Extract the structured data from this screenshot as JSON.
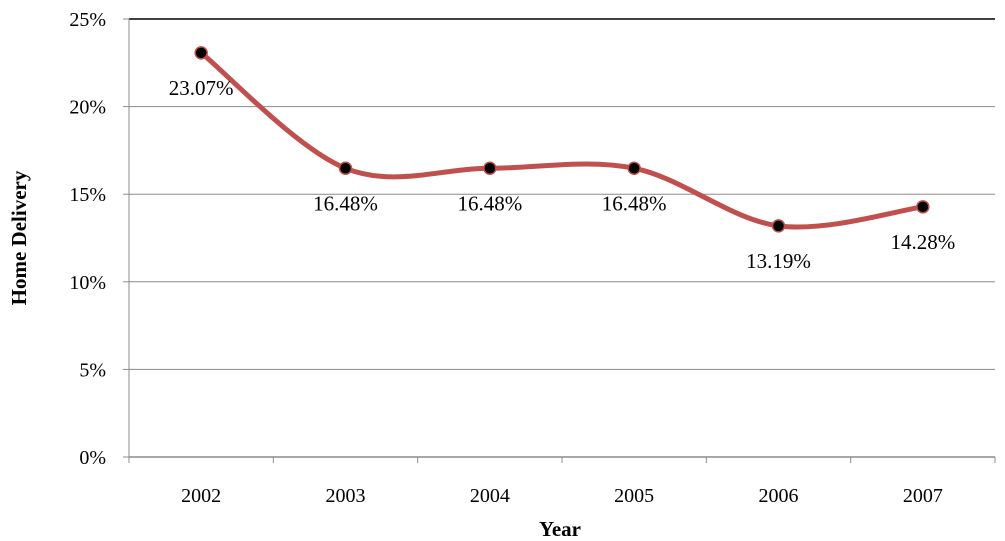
{
  "chart_data": {
    "type": "line",
    "title": "",
    "xlabel": "Year",
    "ylabel": "Home Delivery",
    "categories": [
      "2002",
      "2003",
      "2004",
      "2005",
      "2006",
      "2007"
    ],
    "series": [
      {
        "values": [
          23.07,
          16.48,
          16.48,
          16.48,
          13.19,
          14.28
        ],
        "labels": [
          "23.07%",
          "16.48%",
          "16.48%",
          "16.48%",
          "13.19%",
          "14.28%"
        ],
        "line_color": "#c0504d",
        "marker_color": "#000000"
      }
    ],
    "ylim": [
      0,
      25
    ],
    "yticks": [
      "0%",
      "5%",
      "10%",
      "15%",
      "20%",
      "25%"
    ],
    "grid": true,
    "legend": "none",
    "smooth": true
  }
}
